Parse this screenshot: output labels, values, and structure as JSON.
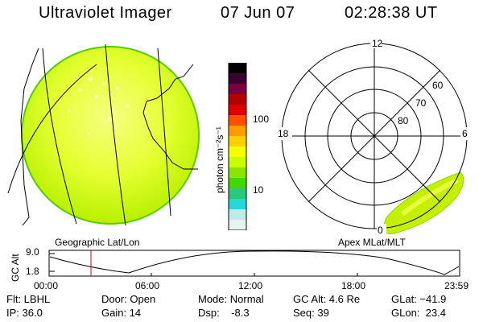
{
  "header": {
    "title": "Ultraviolet Imager",
    "date": "07 Jun 07",
    "time": "02:28:38 UT"
  },
  "colorbar": {
    "label": "photon cm⁻²s⁻¹",
    "ticks": [
      "100",
      "10"
    ],
    "colors": [
      "#000000",
      "#3a0030",
      "#7a0040",
      "#b30000",
      "#e00000",
      "#ff5000",
      "#ff9a00",
      "#ffd000",
      "#f4ff00",
      "#c8ff00",
      "#8ae600",
      "#42d800",
      "#2cc880",
      "#28d8d8",
      "#bfeaea",
      "#e8f0f0"
    ]
  },
  "left_panel": {
    "caption": "Geographic Lat/Lon",
    "disk_color": "#dfff2a"
  },
  "right_panel": {
    "caption": "Apex MLat/MLT",
    "mlt_labels": [
      "12",
      "18",
      "6",
      "0"
    ],
    "mlat_labels": [
      "60",
      "70",
      "80"
    ]
  },
  "altitude_plot": {
    "label_line1": "GC",
    "label_line2": "Alt",
    "y_ticks": [
      "9.0",
      "1.8"
    ],
    "x_ticks": [
      "00:00",
      "06:00",
      "12:00",
      "18:00",
      "23:59"
    ]
  },
  "info": {
    "flt": "Flt: LBHL",
    "ip": "IP: 36.0",
    "door": "Door: Open",
    "gain": "Gain: 14",
    "mode": "Mode: Normal",
    "dsp": "Dsp:    -8.3",
    "gcalt": "GC Alt: 4.6 Re",
    "seq": "Seq: 39",
    "glat": "GLat: −41.9",
    "glon": "GLon:  23.4"
  }
}
